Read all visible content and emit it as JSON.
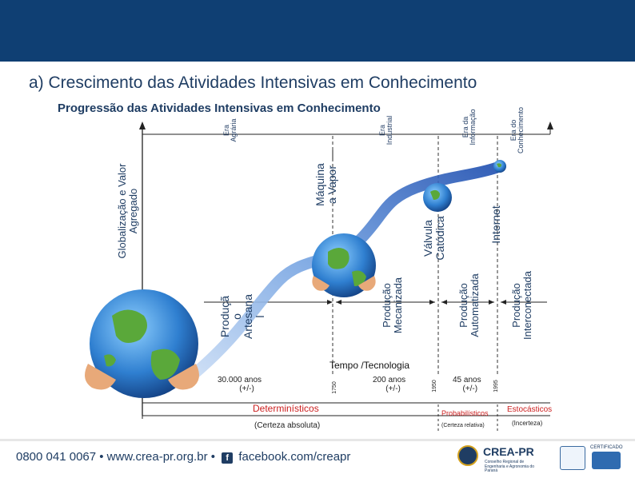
{
  "slide": {
    "title": "a) Crescimento das Atividades Intensivas em Conhecimento",
    "subtitle": "Progressão das Atividades Intensivas em Conhecimento"
  },
  "axes": {
    "y_label_line1": "Globalização e Valor",
    "y_label_line2": "Agregado",
    "x_label": "Tempo /Tecnologia"
  },
  "eras": [
    {
      "line1": "Era",
      "line2": "Agrária"
    },
    {
      "line1": "Era",
      "line2": "Industrial"
    },
    {
      "line1": "Era da",
      "line2": "Informação"
    },
    {
      "line1": "Era do",
      "line2": "Conhecimento"
    }
  ],
  "technologies": {
    "maquina": {
      "line1": "Máquina",
      "line2": "a Vapor"
    },
    "valvula": {
      "line1": "Válvula",
      "line2": "Catódica"
    },
    "internet": "Internet"
  },
  "productions": {
    "artesanal": {
      "line1": "Produçã",
      "line2": "o",
      "line3": "Artesana",
      "line4": "l"
    },
    "mecanizada": {
      "line1": "Produção",
      "line2": "Mecanizada"
    },
    "automatizada": {
      "line1": "Produção",
      "line2": "Automatizada"
    },
    "interconectada": {
      "line1": "Produção",
      "line2": "Interconectada"
    }
  },
  "timeline": {
    "durations": [
      {
        "line1": "30.000 anos",
        "line2": "(+/-)"
      },
      {
        "line1": "200 anos",
        "line2": "(+/-)"
      },
      {
        "line1": "45 anos",
        "line2": "(+/-)"
      }
    ],
    "years": [
      "1750",
      "1950",
      "1995"
    ]
  },
  "categories": {
    "deterministicos": "Determinísticos",
    "certeza_absoluta": "(Certeza absoluta)",
    "probabilisticos": "Probabilísticos",
    "certeza_relativa": "(Certeza relativa)",
    "estocasticos": "Estocásticos",
    "incerteza": "(Incerteza)"
  },
  "footer": {
    "phone_site": "0800 041 0067 • www.crea-pr.org.br •",
    "facebook": "facebook.com/creapr",
    "logo_text": "CREA-PR",
    "logo_sub": "Conselho Regional de Engenharia e Agronomia do Paraná",
    "cert_text": "CERTIFICADO"
  },
  "colors": {
    "header": "#0f3f73",
    "text_blue": "#1f3d63",
    "red": "#cc1f1f",
    "globe_ocean": "#2f7fd0",
    "globe_land": "#5aa83a"
  },
  "icons": [
    "globe-icon",
    "hand-icon",
    "facebook-icon",
    "crea-logo-icon",
    "certificate-icon"
  ]
}
